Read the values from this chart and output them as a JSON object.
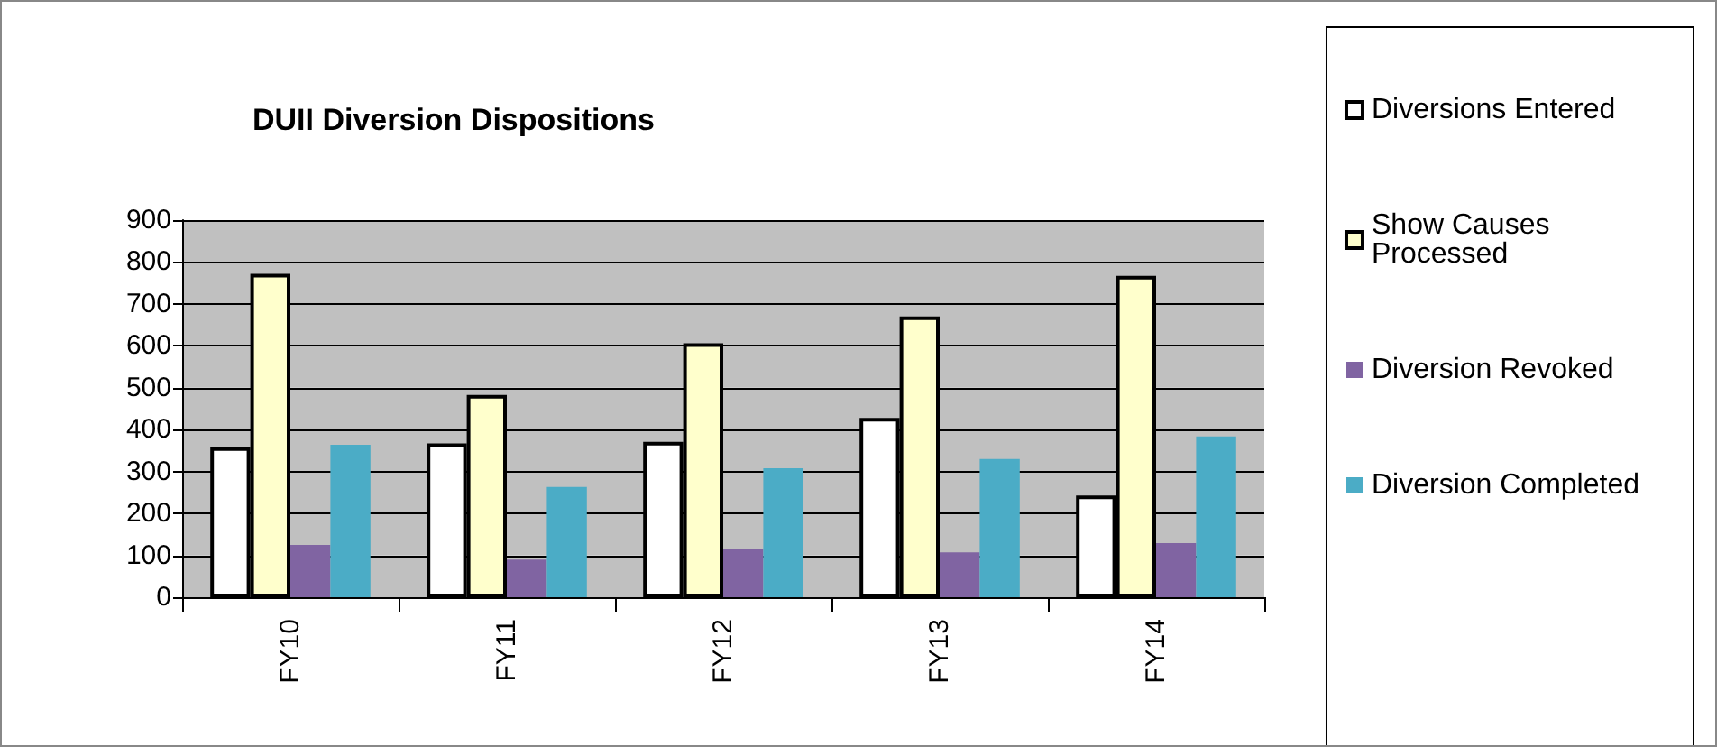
{
  "chart_data": {
    "type": "bar",
    "title": "DUII Diversion Dispositions",
    "categories": [
      "FY10",
      "FY11",
      "FY12",
      "FY13",
      "FY14"
    ],
    "series": [
      {
        "name": "Diversions Entered",
        "color": "#ffffff",
        "values": [
          358,
          367,
          371,
          428,
          243
        ]
      },
      {
        "name": "Show Causes\nProcessed",
        "color": "#ffffcc",
        "values": [
          772,
          483,
          606,
          670,
          767
        ]
      },
      {
        "name": "Diversion Revoked",
        "color": "#8064a2",
        "values": [
          125,
          90,
          115,
          107,
          129
        ]
      },
      {
        "name": "Diversion Completed",
        "color": "#4bacc6",
        "values": [
          364,
          263,
          308,
          330,
          384
        ]
      }
    ],
    "ylim": [
      0,
      900
    ],
    "yticks": [
      0,
      100,
      200,
      300,
      400,
      500,
      600,
      700,
      800,
      900
    ],
    "grid": "y",
    "legend": "right"
  }
}
